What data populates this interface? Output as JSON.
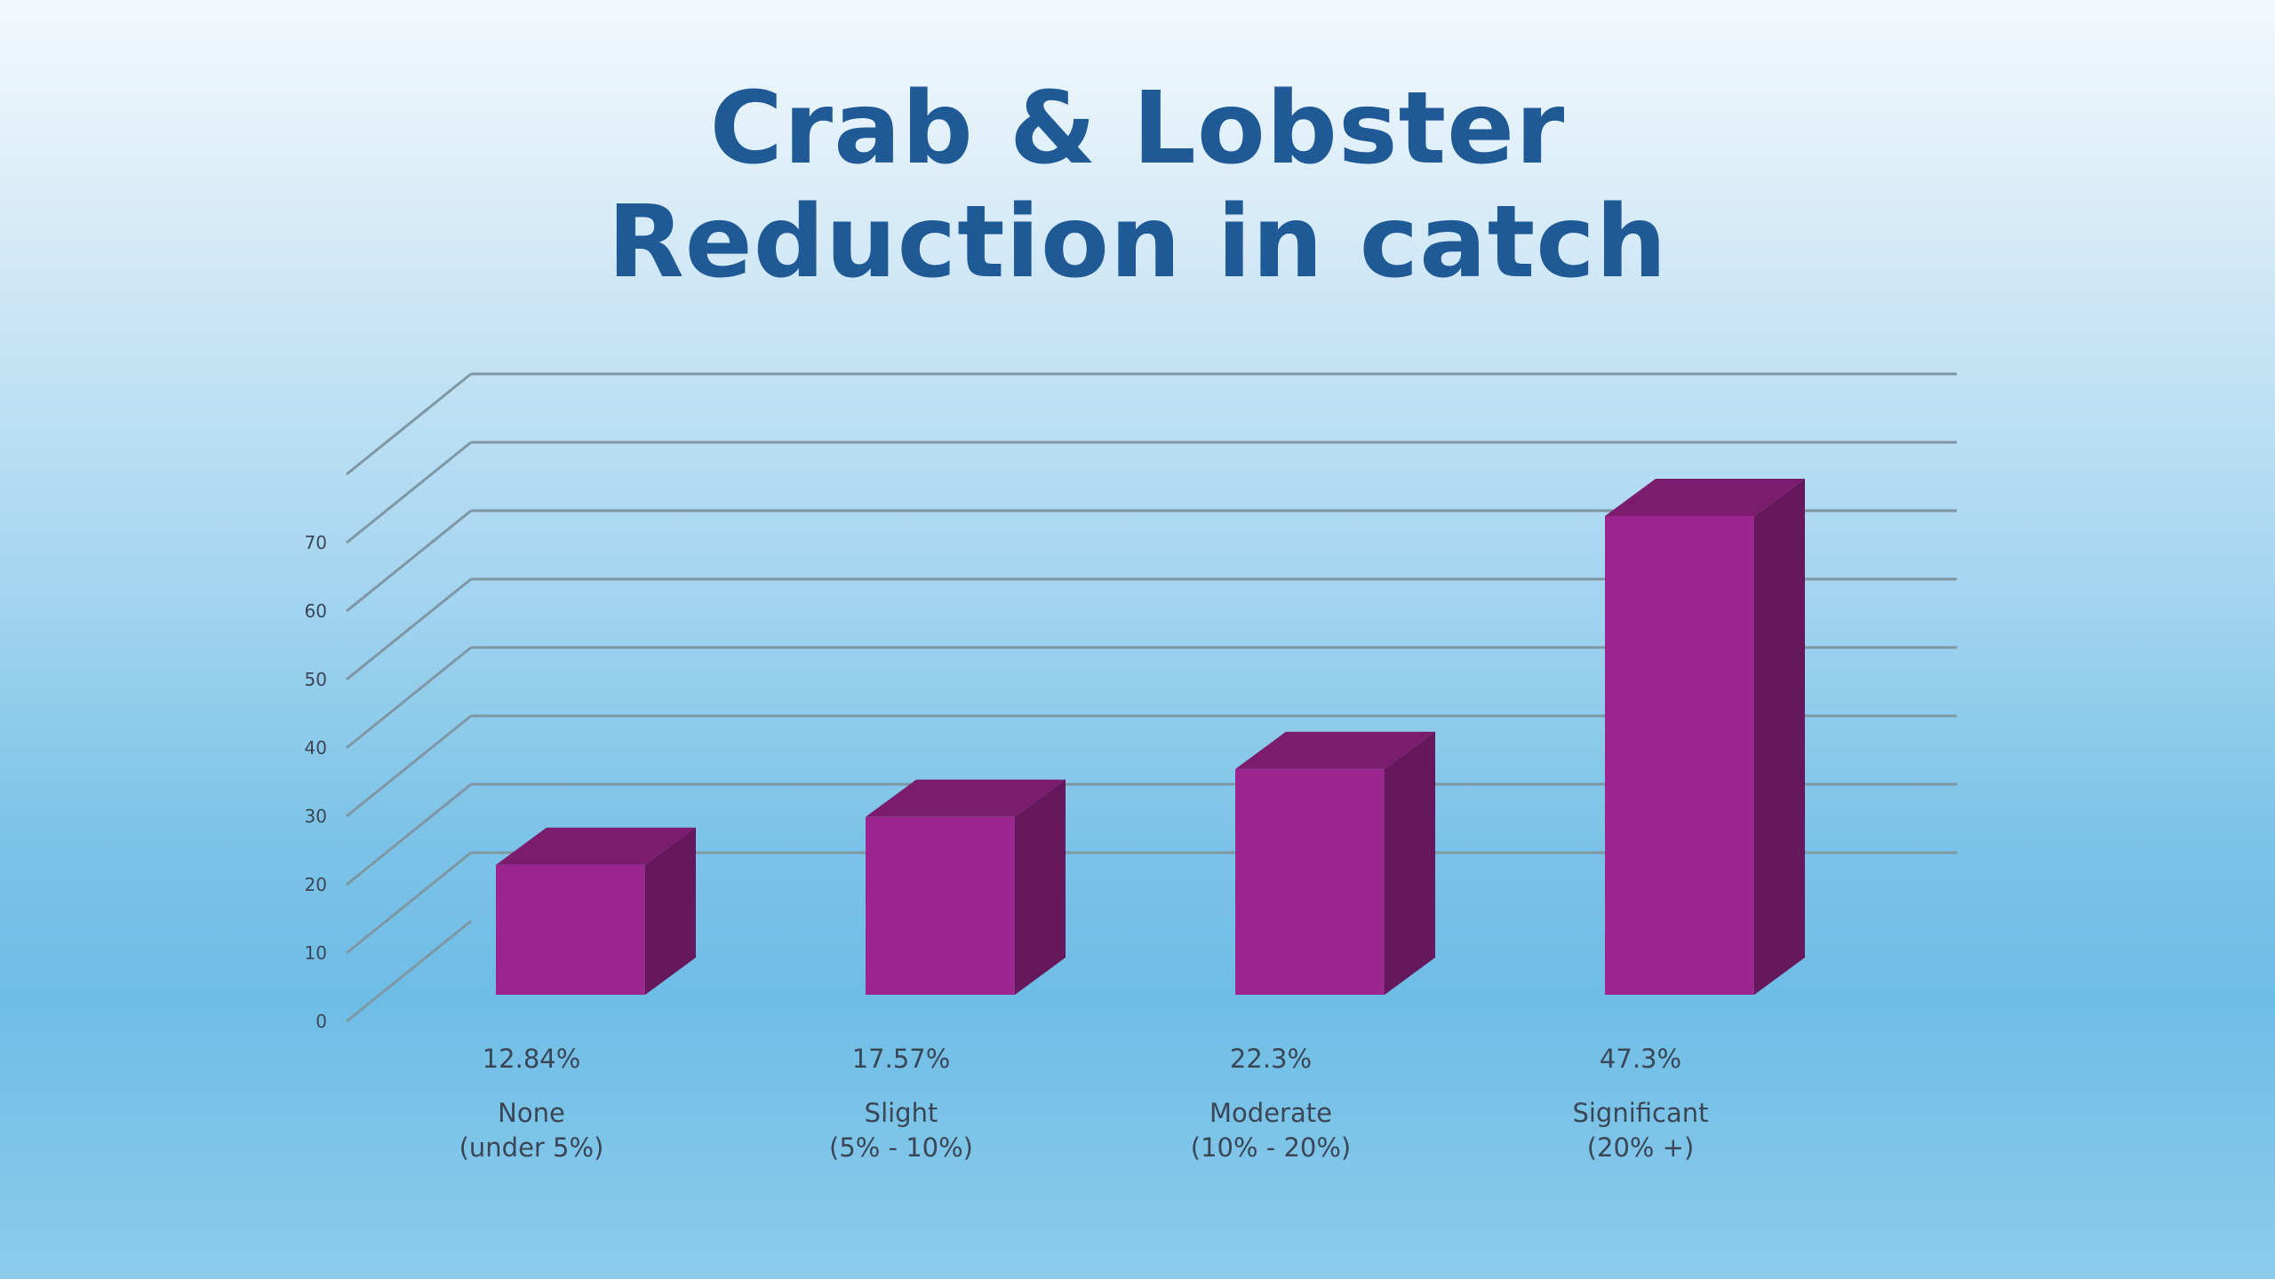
{
  "chart_data": {
    "type": "bar",
    "style": "3d-column",
    "title": [
      "Crab & Lobster",
      "Reduction in catch"
    ],
    "categories": [
      [
        "None",
        "(under 5%)"
      ],
      [
        "Slight",
        "(5% - 10%)"
      ],
      [
        "Moderate",
        "(10% - 20%)"
      ],
      [
        "Significant",
        "(20% +)"
      ]
    ],
    "values": [
      19,
      26,
      33,
      70
    ],
    "data_labels": [
      "12.84%",
      "17.57%",
      "22.3%",
      "47.3%"
    ],
    "y_ticks": [
      "0",
      "10",
      "20",
      "30",
      "40",
      "50",
      "60",
      "70"
    ],
    "ylim": [
      0,
      80
    ],
    "grid": true,
    "legend": "none",
    "colors": {
      "bar_front": "#9b268f",
      "bar_top": "#7b1c6f",
      "bar_side": "#66185c",
      "gridline": "#7f97a4",
      "title": "#1f5a97"
    }
  }
}
